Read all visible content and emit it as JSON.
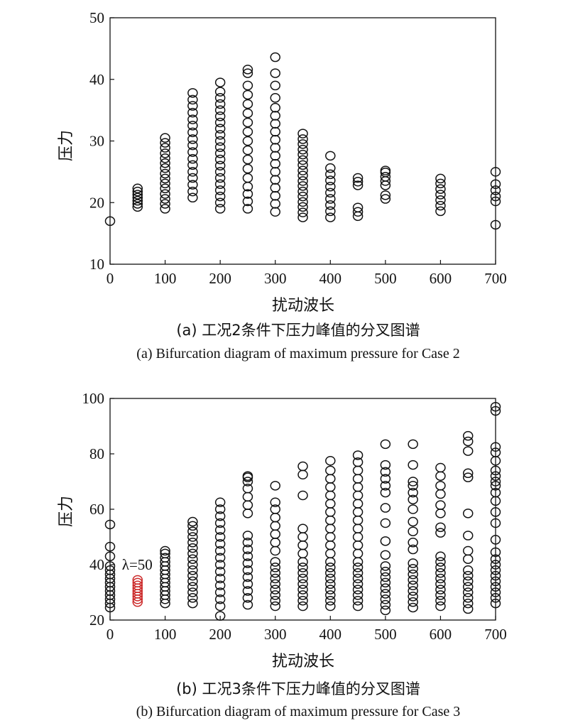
{
  "chart_data": [
    {
      "type": "scatter",
      "xlabel": "扰动波长",
      "ylabel": "压力",
      "caption_cn": "(a) 工况2条件下压力峰值的分叉图谱",
      "caption_en": "(a) Bifurcation diagram of maximum pressure for Case 2",
      "xlim": [
        0,
        700
      ],
      "ylim": [
        10,
        50
      ],
      "x_ticks": [
        0,
        100,
        200,
        300,
        400,
        500,
        600,
        700
      ],
      "y_ticks": [
        10,
        20,
        30,
        40,
        50
      ],
      "marker_color": "#111111",
      "series": [
        {
          "points": [
            {
              "x": 0,
              "y": [
                17.0
              ]
            },
            {
              "x": 50,
              "y": [
                19.3,
                19.8,
                20.3,
                20.8,
                21.3,
                21.8,
                22.3
              ]
            },
            {
              "x": 100,
              "y": [
                19.0,
                19.8,
                20.6,
                21.4,
                22.3,
                23.1,
                23.9,
                24.7,
                25.6,
                26.4,
                27.2,
                28.0,
                28.9,
                29.7,
                30.5
              ]
            },
            {
              "x": 150,
              "y": [
                20.8,
                21.8,
                22.9,
                24.0,
                25.0,
                26.1,
                27.1,
                28.2,
                29.3,
                30.3,
                31.4,
                32.5,
                33.5,
                34.6,
                35.7,
                36.7,
                37.8
              ]
            },
            {
              "x": 200,
              "y": [
                19.0,
                20.0,
                21.0,
                22.0,
                23.0,
                24.0,
                25.0,
                26.0,
                27.0,
                28.0,
                29.0,
                30.0,
                31.0,
                32.0,
                33.0,
                34.0,
                35.0,
                36.0,
                37.0,
                38.0,
                39.5
              ]
            },
            {
              "x": 250,
              "y": [
                19.0,
                20.2,
                21.4,
                22.6,
                24.0,
                25.5,
                27.0,
                28.5,
                30.0,
                31.5,
                33.0,
                34.5,
                36.0,
                37.5,
                39.0,
                41.0,
                41.6
              ]
            },
            {
              "x": 300,
              "y": [
                18.5,
                19.8,
                21.1,
                22.4,
                23.7,
                25.0,
                26.3,
                27.6,
                28.9,
                30.2,
                31.5,
                32.8,
                34.1,
                35.4,
                37.0,
                39.0,
                41.0,
                43.6
              ]
            },
            {
              "x": 350,
              "y": [
                17.6,
                18.4,
                19.3,
                20.1,
                21.0,
                21.8,
                22.7,
                23.5,
                24.4,
                25.2,
                26.1,
                26.9,
                27.8,
                28.6,
                29.5,
                30.3,
                31.2
              ]
            },
            {
              "x": 400,
              "y": [
                17.6,
                18.6,
                19.6,
                20.6,
                21.6,
                22.6,
                23.6,
                24.6,
                25.6,
                27.6
              ]
            },
            {
              "x": 450,
              "y": [
                17.8,
                18.5,
                19.2,
                22.8,
                23.4,
                24.0
              ]
            },
            {
              "x": 500,
              "y": [
                20.6,
                21.2,
                22.8,
                23.5,
                24.2,
                24.9,
                25.2
              ]
            },
            {
              "x": 600,
              "y": [
                18.6,
                19.5,
                20.4,
                21.3,
                22.2,
                23.1,
                23.9
              ]
            },
            {
              "x": 700,
              "y": [
                16.4,
                20.2,
                21.0,
                22.0,
                23.0,
                25.0
              ]
            }
          ]
        }
      ]
    },
    {
      "type": "scatter",
      "xlabel": "扰动波长",
      "ylabel": "压力",
      "caption_cn": "(b) 工况3条件下压力峰值的分叉图谱",
      "caption_en": "(b) Bifurcation diagram of maximum pressure for Case 3",
      "xlim": [
        0,
        700
      ],
      "ylim": [
        20,
        100
      ],
      "x_ticks": [
        0,
        100,
        200,
        300,
        400,
        500,
        600,
        700
      ],
      "y_ticks": [
        20,
        40,
        60,
        80,
        100
      ],
      "annotation": {
        "text": "λ=50",
        "x": 50,
        "y": 40
      },
      "marker_color": "#111111",
      "highlight_color": "#cc2b2b",
      "series": [
        {
          "points": [
            {
              "x": 0,
              "y": [
                24.5,
                26.0,
                27.5,
                29.0,
                30.5,
                32.0,
                33.5,
                35.0,
                36.5,
                38.0,
                39.5,
                43.0,
                46.5,
                54.5
              ]
            },
            {
              "x": 100,
              "y": [
                26.0,
                27.5,
                29.0,
                30.5,
                32.0,
                33.5,
                35.0,
                36.5,
                38.0,
                39.5,
                41.0,
                42.5,
                44.0,
                45.0
              ]
            },
            {
              "x": 150,
              "y": [
                26.0,
                28.0,
                30.0,
                32.0,
                34.0,
                36.0,
                38.0,
                40.0,
                42.0,
                44.0,
                46.0,
                48.0,
                50.0,
                52.0,
                54.0,
                55.5
              ]
            },
            {
              "x": 200,
              "y": [
                21.5,
                25.0,
                27.5,
                30.0,
                32.5,
                35.0,
                37.5,
                40.0,
                42.5,
                45.0,
                47.5,
                50.0,
                52.5,
                55.0,
                57.5,
                60.0,
                62.5
              ]
            },
            {
              "x": 250,
              "y": [
                25.5,
                28.0,
                30.5,
                33.0,
                35.5,
                38.0,
                40.5,
                43.0,
                45.5,
                48.0,
                50.5,
                58.5,
                61.5,
                64.5,
                67.5,
                70.0,
                71.5,
                72.0
              ]
            },
            {
              "x": 300,
              "y": [
                25.0,
                27.0,
                29.0,
                31.0,
                33.0,
                35.0,
                37.0,
                39.0,
                41.0,
                45.0,
                48.0,
                51.0,
                54.0,
                57.0,
                60.0,
                62.5,
                68.5
              ]
            },
            {
              "x": 350,
              "y": [
                25.0,
                27.0,
                29.0,
                31.0,
                33.0,
                35.0,
                37.0,
                39.0,
                41.0,
                44.0,
                47.0,
                50.0,
                53.0,
                65.0,
                72.5,
                75.5
              ]
            },
            {
              "x": 400,
              "y": [
                25.0,
                27.0,
                29.0,
                31.0,
                33.0,
                35.0,
                37.0,
                39.0,
                41.0,
                44.0,
                47.0,
                50.0,
                53.0,
                56.0,
                59.0,
                62.0,
                65.0,
                68.0,
                71.0,
                74.0,
                77.5
              ]
            },
            {
              "x": 450,
              "y": [
                25.0,
                27.0,
                29.0,
                31.0,
                33.0,
                35.0,
                37.0,
                39.0,
                41.0,
                44.0,
                47.0,
                50.0,
                53.0,
                56.0,
                59.0,
                62.0,
                65.0,
                68.0,
                71.0,
                74.0,
                77.0,
                79.5
              ]
            },
            {
              "x": 500,
              "y": [
                23.5,
                25.5,
                27.5,
                29.5,
                31.5,
                33.5,
                35.5,
                37.5,
                39.5,
                43.5,
                48.5,
                55.0,
                60.5,
                66.0,
                68.5,
                71.0,
                73.5,
                76.0,
                83.5
              ]
            },
            {
              "x": 550,
              "y": [
                24.5,
                26.5,
                28.5,
                30.5,
                32.5,
                34.5,
                36.5,
                38.5,
                40.5,
                45.5,
                48.0,
                52.0,
                55.5,
                60.0,
                63.5,
                66.0,
                68.5,
                70.0,
                76.0,
                83.5
              ]
            },
            {
              "x": 600,
              "y": [
                25.0,
                27.0,
                29.0,
                31.0,
                33.0,
                35.0,
                37.0,
                39.0,
                41.0,
                43.0,
                51.5,
                53.5,
                58.5,
                61.5,
                65.5,
                68.5,
                72.0,
                75.0
              ]
            },
            {
              "x": 650,
              "y": [
                24.0,
                26.0,
                28.0,
                30.0,
                32.0,
                34.0,
                36.0,
                38.0,
                42.0,
                45.0,
                50.5,
                58.5,
                71.5,
                73.0,
                81.0,
                84.5,
                86.5
              ]
            },
            {
              "x": 700,
              "y": [
                26.0,
                28.0,
                30.0,
                32.0,
                34.0,
                36.0,
                38.0,
                40.0,
                42.0,
                44.5,
                49.0,
                55.0,
                59.0,
                63.0,
                66.0,
                68.5,
                70.0,
                72.0,
                74.0,
                77.5,
                80.5,
                82.5,
                95.5,
                97.0
              ]
            }
          ]
        },
        {
          "highlight": true,
          "points": [
            {
              "x": 50,
              "y": [
                26.5,
                27.5,
                28.5,
                29.5,
                30.5,
                31.5,
                32.5,
                33.5,
                34.5
              ]
            }
          ]
        }
      ]
    }
  ]
}
